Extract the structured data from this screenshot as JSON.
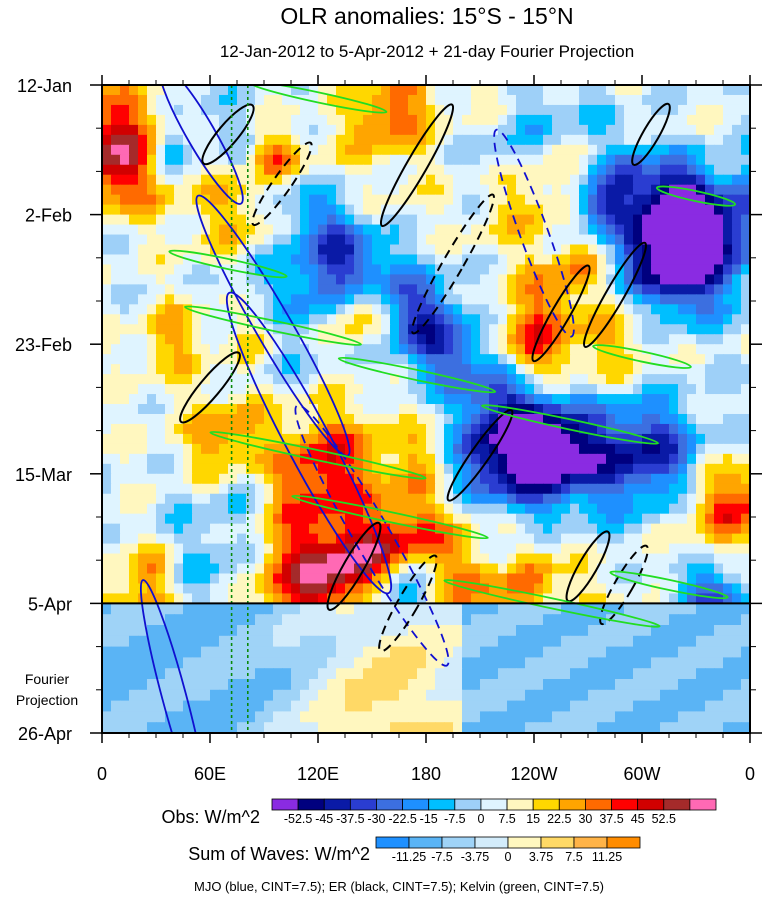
{
  "title": "OLR anomalies: 15°S - 15°N",
  "subtitle": "12-Jan-2012 to 5-Apr-2012 + 21-day Fourier Projection",
  "chart_data": {
    "type": "heatmap",
    "title": "OLR anomalies: 15°S - 15°N",
    "subtitle": "12-Jan-2012 to 5-Apr-2012 + 21-day Fourier Projection",
    "x_ticks": [
      "0",
      "60E",
      "120E",
      "180",
      "120W",
      "60W",
      "0"
    ],
    "x_tick_values": [
      0,
      60,
      120,
      180,
      240,
      300,
      360
    ],
    "xlim": [
      0,
      360
    ],
    "y_ticks": [
      "12-Jan",
      "2-Feb",
      "23-Feb",
      "15-Mar",
      "5-Apr",
      "26-Apr"
    ],
    "y_tick_dates": [
      "2012-01-12",
      "2012-02-02",
      "2012-02-23",
      "2012-03-15",
      "2012-04-05",
      "2012-04-26"
    ],
    "observation_end": "2012-04-05",
    "projection_label": "Fourier Projection",
    "reference_lines_longitude": [
      72,
      81
    ],
    "obs_colorbar": {
      "label": "Obs: W/m^2",
      "levels": [
        "-52.5",
        "-45",
        "-37.5",
        "-30",
        "-22.5",
        "-15",
        "-7.5",
        "0",
        "7.5",
        "15",
        "22.5",
        "30",
        "37.5",
        "45",
        "52.5"
      ],
      "colors": [
        "#8a2be2",
        "#00007f",
        "#0a1aa6",
        "#2a3dd1",
        "#3c6fe0",
        "#1e90ff",
        "#00bfff",
        "#9ed0f8",
        "#dff4ff",
        "#fff7bf",
        "#ffd700",
        "#ffa500",
        "#ff6a00",
        "#ff0000",
        "#d10000",
        "#a52a2a",
        "#ff69b4"
      ]
    },
    "waves_colorbar": {
      "label": "Sum of Waves: W/m^2",
      "levels": [
        "-11.25",
        "-7.5",
        "-3.75",
        "0",
        "3.75",
        "7.5",
        "11.25"
      ],
      "colors": [
        "#1e90ff",
        "#5ab4f5",
        "#9fd3f7",
        "#d3ecfb",
        "#fff7bf",
        "#ffd966",
        "#ffb347",
        "#ff8c00"
      ]
    },
    "contour_legend": "MJO (blue, CINT=7.5); ER (black, CINT=7.5); Kelvin (green, CINT=7.5)",
    "series": [
      {
        "name": "MJO",
        "color": "#1010d0",
        "cint": 7.5
      },
      {
        "name": "ER",
        "color": "#000000",
        "cint": 7.5
      },
      {
        "name": "Kelvin",
        "color": "#22dd22",
        "cint": 7.5
      }
    ]
  }
}
